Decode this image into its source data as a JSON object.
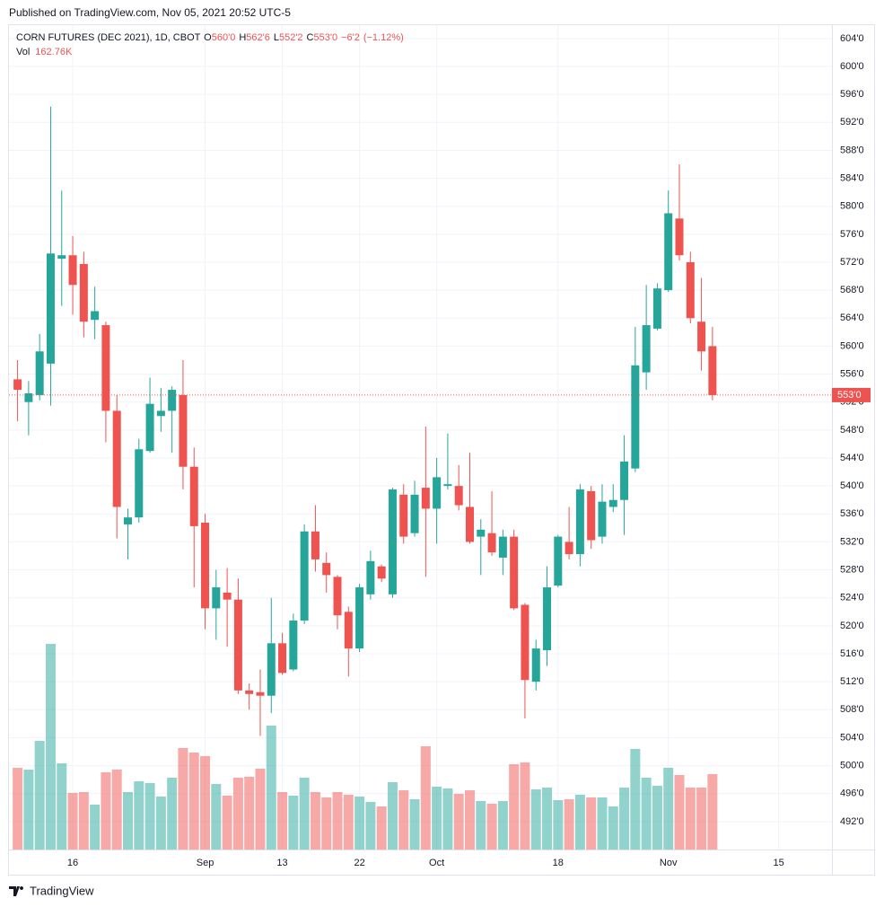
{
  "published": "Published on TradingView.com, Nov 05, 2021 20:52 UTC-5",
  "brand": "TradingView",
  "chart_data": {
    "type": "candlestick",
    "symbol": "CORN FUTURES (DEC 2021), 1D, CBOT",
    "ohlc_legend": [
      {
        "key": "O",
        "value": 560,
        "label": "560'0"
      },
      {
        "key": "H",
        "value": 562.75,
        "label": "562'6"
      },
      {
        "key": "L",
        "value": 552.25,
        "label": "552'2"
      },
      {
        "key": "C",
        "value": 553,
        "label": "553'0"
      }
    ],
    "change": {
      "value": -6.25,
      "label": "−6'2"
    },
    "change_pct": {
      "value": -1.12,
      "label": "(−1.12%)"
    },
    "volume_key": "Vol",
    "volume_last": {
      "value": 162760,
      "label": "162.76K"
    },
    "price_line": {
      "value": 553,
      "label": "553'0"
    },
    "up_color": "#26a69a",
    "down_color": "#ef5350",
    "grid": true,
    "categories": [
      null,
      null,
      null,
      null,
      null,
      "16",
      null,
      null,
      null,
      null,
      null,
      null,
      null,
      null,
      null,
      null,
      null,
      "Sep",
      null,
      null,
      null,
      null,
      null,
      null,
      "13",
      null,
      null,
      null,
      null,
      null,
      null,
      "22",
      null,
      null,
      null,
      null,
      null,
      null,
      "Oct",
      null,
      null,
      null,
      null,
      null,
      null,
      null,
      null,
      null,
      null,
      "18",
      null,
      null,
      null,
      null,
      null,
      null,
      null,
      null,
      null,
      "Nov",
      null,
      null,
      null,
      null,
      null,
      null,
      null,
      null,
      null,
      "15",
      null,
      null,
      null,
      null,
      null
    ],
    "open": [
      555.25,
      552,
      553,
      557.5,
      572.5,
      573,
      571.75,
      563.75,
      563,
      550.75,
      534.5,
      535.5,
      545,
      550,
      550.75,
      553,
      542.75,
      534.75,
      522.5,
      524.75,
      523.75,
      510.75,
      510.5,
      510,
      517.5,
      513.75,
      520.75,
      533.5,
      529,
      527,
      522,
      516.75,
      524.5,
      528.5,
      524.5,
      538.75,
      533.25,
      539.75,
      536.75,
      540,
      540,
      537,
      532.75,
      533.25,
      529.75,
      532.75,
      523,
      512,
      516.5,
      525.75,
      532,
      530.25,
      539.25,
      532.75,
      537,
      538,
      542.5,
      556.25,
      562.5,
      568,
      578.25,
      572,
      563.5,
      560,
      null,
      null,
      null,
      null,
      null,
      null,
      null,
      null,
      null,
      null,
      null
    ],
    "high": [
      558,
      555,
      561.75,
      594.25,
      582.25,
      575.75,
      573.5,
      568.5,
      563.5,
      553,
      536.75,
      546.75,
      555.5,
      554,
      554.25,
      558,
      545.5,
      536,
      528,
      528.25,
      526.75,
      511.75,
      513.75,
      524,
      519,
      521.75,
      534.5,
      537.25,
      530.5,
      527.25,
      522.75,
      526,
      530.75,
      528.75,
      539.75,
      540.25,
      540.75,
      548.5,
      544,
      547.5,
      543,
      544.75,
      535.25,
      539.25,
      533.75,
      533.75,
      523.25,
      518,
      528.5,
      533,
      537,
      540.25,
      540,
      540.25,
      540.25,
      547.25,
      562.75,
      568.75,
      569,
      582.25,
      586,
      573.5,
      569.75,
      562.75,
      null,
      null,
      null,
      null,
      null,
      null,
      null,
      null,
      null,
      null,
      null
    ],
    "low": [
      549.25,
      547.25,
      552.25,
      551.5,
      565.75,
      564.5,
      561.25,
      561,
      546.25,
      532.5,
      529.5,
      534.75,
      544.75,
      547.75,
      544.75,
      539.5,
      525.5,
      519.5,
      518,
      517,
      510.25,
      508,
      504.25,
      507.5,
      513,
      513.5,
      520.25,
      527.75,
      524.75,
      519.5,
      512.75,
      516.25,
      523.75,
      526.25,
      524,
      531.75,
      532.75,
      527,
      531.75,
      539.5,
      536.5,
      531.75,
      527.25,
      530,
      527.25,
      522.25,
      506.75,
      510.75,
      514.25,
      525.5,
      529.5,
      528.5,
      531,
      531.75,
      536.25,
      533,
      542,
      553.75,
      562.25,
      567.75,
      572.25,
      563.25,
      556.5,
      552.25,
      null,
      null,
      null,
      null,
      null,
      null,
      null,
      null,
      null,
      null,
      null
    ],
    "close": [
      553.75,
      553.25,
      559.25,
      573.25,
      573,
      568.75,
      563.5,
      565,
      550.75,
      537,
      535.5,
      545.25,
      551.75,
      550.75,
      553.75,
      542.75,
      534.25,
      522.5,
      525.5,
      523.75,
      510.75,
      510.25,
      510,
      517.5,
      513.25,
      520.75,
      533.5,
      529.5,
      527.25,
      521.5,
      516.75,
      525.5,
      529.25,
      526.75,
      539.5,
      532.75,
      538.75,
      536.75,
      541.25,
      540.25,
      537.25,
      532,
      533.75,
      530.5,
      532.75,
      522.5,
      512.25,
      516.75,
      525.5,
      532.75,
      530.25,
      539.5,
      532.25,
      537.75,
      538,
      543.5,
      557.25,
      563,
      568.25,
      579,
      573,
      564,
      559.25,
      553,
      null,
      null,
      null,
      null,
      null,
      null,
      null,
      null,
      null,
      null,
      null
    ],
    "volume": [
      176300,
      172400,
      234400,
      443700,
      186000,
      122100,
      124000,
      96900,
      166600,
      172400,
      124000,
      147300,
      143400,
      114300,
      155000,
      219000,
      209300,
      201500,
      141400,
      116300,
      155000,
      156900,
      174400,
      267400,
      124000,
      116300,
      155000,
      124000,
      112400,
      124000,
      118200,
      114300,
      102700,
      93000,
      145300,
      127900,
      108500,
      222800,
      135600,
      131800,
      120100,
      127900,
      104600,
      98800,
      104600,
      184100,
      187900,
      129800,
      133700,
      106600,
      108500,
      118200,
      112400,
      112400,
      93000,
      133700,
      217000,
      155000,
      137600,
      176300,
      160800,
      133700,
      133700,
      162760,
      null,
      null,
      null,
      null,
      null,
      null,
      null,
      null,
      null,
      null,
      null
    ],
    "ylim": [
      488,
      606
    ],
    "yticks": [
      {
        "value": 604,
        "label": "604'0"
      },
      {
        "value": 600,
        "label": "600'0"
      },
      {
        "value": 596,
        "label": "596'0"
      },
      {
        "value": 592,
        "label": "592'0"
      },
      {
        "value": 588,
        "label": "588'0"
      },
      {
        "value": 584,
        "label": "584'0"
      },
      {
        "value": 580,
        "label": "580'0"
      },
      {
        "value": 576,
        "label": "576'0"
      },
      {
        "value": 572,
        "label": "572'0"
      },
      {
        "value": 568,
        "label": "568'0"
      },
      {
        "value": 564,
        "label": "564'0"
      },
      {
        "value": 560,
        "label": "560'0"
      },
      {
        "value": 556,
        "label": "556'0"
      },
      {
        "value": 552,
        "label": "552'0"
      },
      {
        "value": 548,
        "label": "548'0"
      },
      {
        "value": 544,
        "label": "544'0"
      },
      {
        "value": 540,
        "label": "540'0"
      },
      {
        "value": 536,
        "label": "536'0"
      },
      {
        "value": 532,
        "label": "532'0"
      },
      {
        "value": 528,
        "label": "528'0"
      },
      {
        "value": 524,
        "label": "524'0"
      },
      {
        "value": 520,
        "label": "520'0"
      },
      {
        "value": 516,
        "label": "516'0"
      },
      {
        "value": 512,
        "label": "512'0"
      },
      {
        "value": 508,
        "label": "508'0"
      },
      {
        "value": 504,
        "label": "504'0"
      },
      {
        "value": 500,
        "label": "500'0"
      },
      {
        "value": 496,
        "label": "496'0"
      },
      {
        "value": 492,
        "label": "492'0"
      }
    ]
  }
}
